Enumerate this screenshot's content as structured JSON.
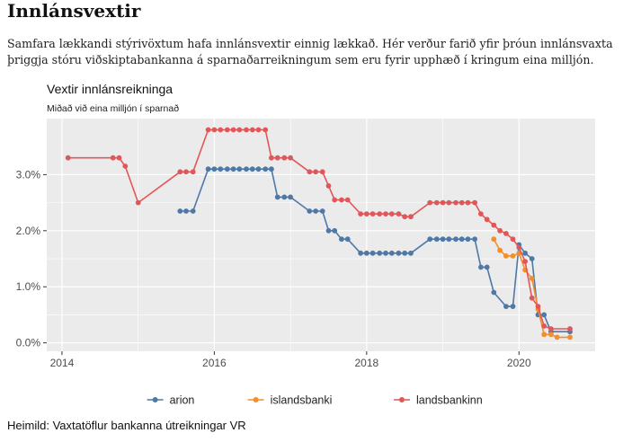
{
  "page": {
    "heading": "Innlánsvextir",
    "intro": "Samfara lækkandi stýrivöxtum hafa innlánsvextir einnig lækkað.  Hér verður farið yfir þróun innlánsvaxta þriggja stóru viðskiptabankanna á sparnaðarreikningum sem eru fyrir upphæð í kringum eina milljón.",
    "source": "Heimild: Vaxtatöflur bankanna útreikningar VR"
  },
  "chart_data": {
    "type": "line",
    "title": "Vextir innlánsreikninga",
    "subtitle": "Miðað við eina milljón í sparnað",
    "xlabel": "",
    "ylabel": "",
    "xlim": [
      2013.8,
      2021.0
    ],
    "ylim": [
      -0.15,
      4.0
    ],
    "x_ticks": [
      2014,
      2016,
      2018,
      2020
    ],
    "x_tick_labels": [
      "2014",
      "2016",
      "2018",
      "2020"
    ],
    "y_ticks": [
      0,
      1,
      2,
      3
    ],
    "y_tick_labels": [
      "0.0%",
      "1.0%",
      "2.0%",
      "3.0%"
    ],
    "grid": true,
    "legend_position": "bottom",
    "series": [
      {
        "name": "arion",
        "color": "#4e79a7",
        "x": [
          2015.55,
          2015.63,
          2015.72,
          2015.92,
          2016.0,
          2016.08,
          2016.17,
          2016.25,
          2016.33,
          2016.42,
          2016.5,
          2016.58,
          2016.67,
          2016.75,
          2016.83,
          2016.92,
          2017.0,
          2017.25,
          2017.33,
          2017.42,
          2017.5,
          2017.58,
          2017.67,
          2017.75,
          2017.92,
          2018.0,
          2018.08,
          2018.17,
          2018.25,
          2018.33,
          2018.42,
          2018.5,
          2018.58,
          2018.83,
          2018.92,
          2019.0,
          2019.08,
          2019.17,
          2019.25,
          2019.33,
          2019.42,
          2019.5,
          2019.58,
          2019.67,
          2019.83,
          2019.92,
          2020.0,
          2020.08,
          2020.17,
          2020.25,
          2020.33,
          2020.42,
          2020.67
        ],
        "y": [
          2.35,
          2.35,
          2.35,
          3.1,
          3.1,
          3.1,
          3.1,
          3.1,
          3.1,
          3.1,
          3.1,
          3.1,
          3.1,
          3.1,
          2.6,
          2.6,
          2.6,
          2.35,
          2.35,
          2.35,
          2.0,
          2.0,
          1.85,
          1.85,
          1.6,
          1.6,
          1.6,
          1.6,
          1.6,
          1.6,
          1.6,
          1.6,
          1.6,
          1.85,
          1.85,
          1.85,
          1.85,
          1.85,
          1.85,
          1.85,
          1.85,
          1.35,
          1.35,
          0.9,
          0.65,
          0.65,
          1.75,
          1.6,
          1.5,
          0.5,
          0.5,
          0.2,
          0.2
        ]
      },
      {
        "name": "islandsbanki",
        "color": "#f28e2b",
        "x": [
          2019.67,
          2019.75,
          2019.83,
          2019.92,
          2020.0,
          2020.08,
          2020.17,
          2020.25,
          2020.33,
          2020.42,
          2020.5,
          2020.67
        ],
        "y": [
          1.85,
          1.65,
          1.55,
          1.55,
          1.6,
          1.3,
          1.15,
          0.6,
          0.15,
          0.15,
          0.1,
          0.1
        ]
      },
      {
        "name": "landsbankinn",
        "color": "#e15759",
        "x": [
          2014.08,
          2014.67,
          2014.75,
          2014.83,
          2015.0,
          2015.55,
          2015.63,
          2015.72,
          2015.92,
          2016.0,
          2016.08,
          2016.17,
          2016.25,
          2016.33,
          2016.42,
          2016.5,
          2016.58,
          2016.67,
          2016.75,
          2016.83,
          2016.92,
          2017.0,
          2017.25,
          2017.33,
          2017.42,
          2017.5,
          2017.58,
          2017.67,
          2017.75,
          2017.92,
          2018.0,
          2018.08,
          2018.17,
          2018.25,
          2018.33,
          2018.42,
          2018.5,
          2018.58,
          2018.83,
          2018.92,
          2019.0,
          2019.08,
          2019.17,
          2019.25,
          2019.33,
          2019.42,
          2019.5,
          2019.58,
          2019.67,
          2019.75,
          2019.83,
          2019.92,
          2020.0,
          2020.08,
          2020.17,
          2020.25,
          2020.33,
          2020.42,
          2020.67
        ],
        "y": [
          3.3,
          3.3,
          3.3,
          3.15,
          2.5,
          3.05,
          3.05,
          3.05,
          3.8,
          3.8,
          3.8,
          3.8,
          3.8,
          3.8,
          3.8,
          3.8,
          3.8,
          3.8,
          3.3,
          3.3,
          3.3,
          3.3,
          3.05,
          3.05,
          3.05,
          2.8,
          2.55,
          2.55,
          2.55,
          2.3,
          2.3,
          2.3,
          2.3,
          2.3,
          2.3,
          2.3,
          2.25,
          2.25,
          2.5,
          2.5,
          2.5,
          2.5,
          2.5,
          2.5,
          2.5,
          2.5,
          2.3,
          2.2,
          2.1,
          2.0,
          1.95,
          1.85,
          1.7,
          1.45,
          0.8,
          0.65,
          0.3,
          0.25,
          0.25
        ]
      }
    ]
  }
}
